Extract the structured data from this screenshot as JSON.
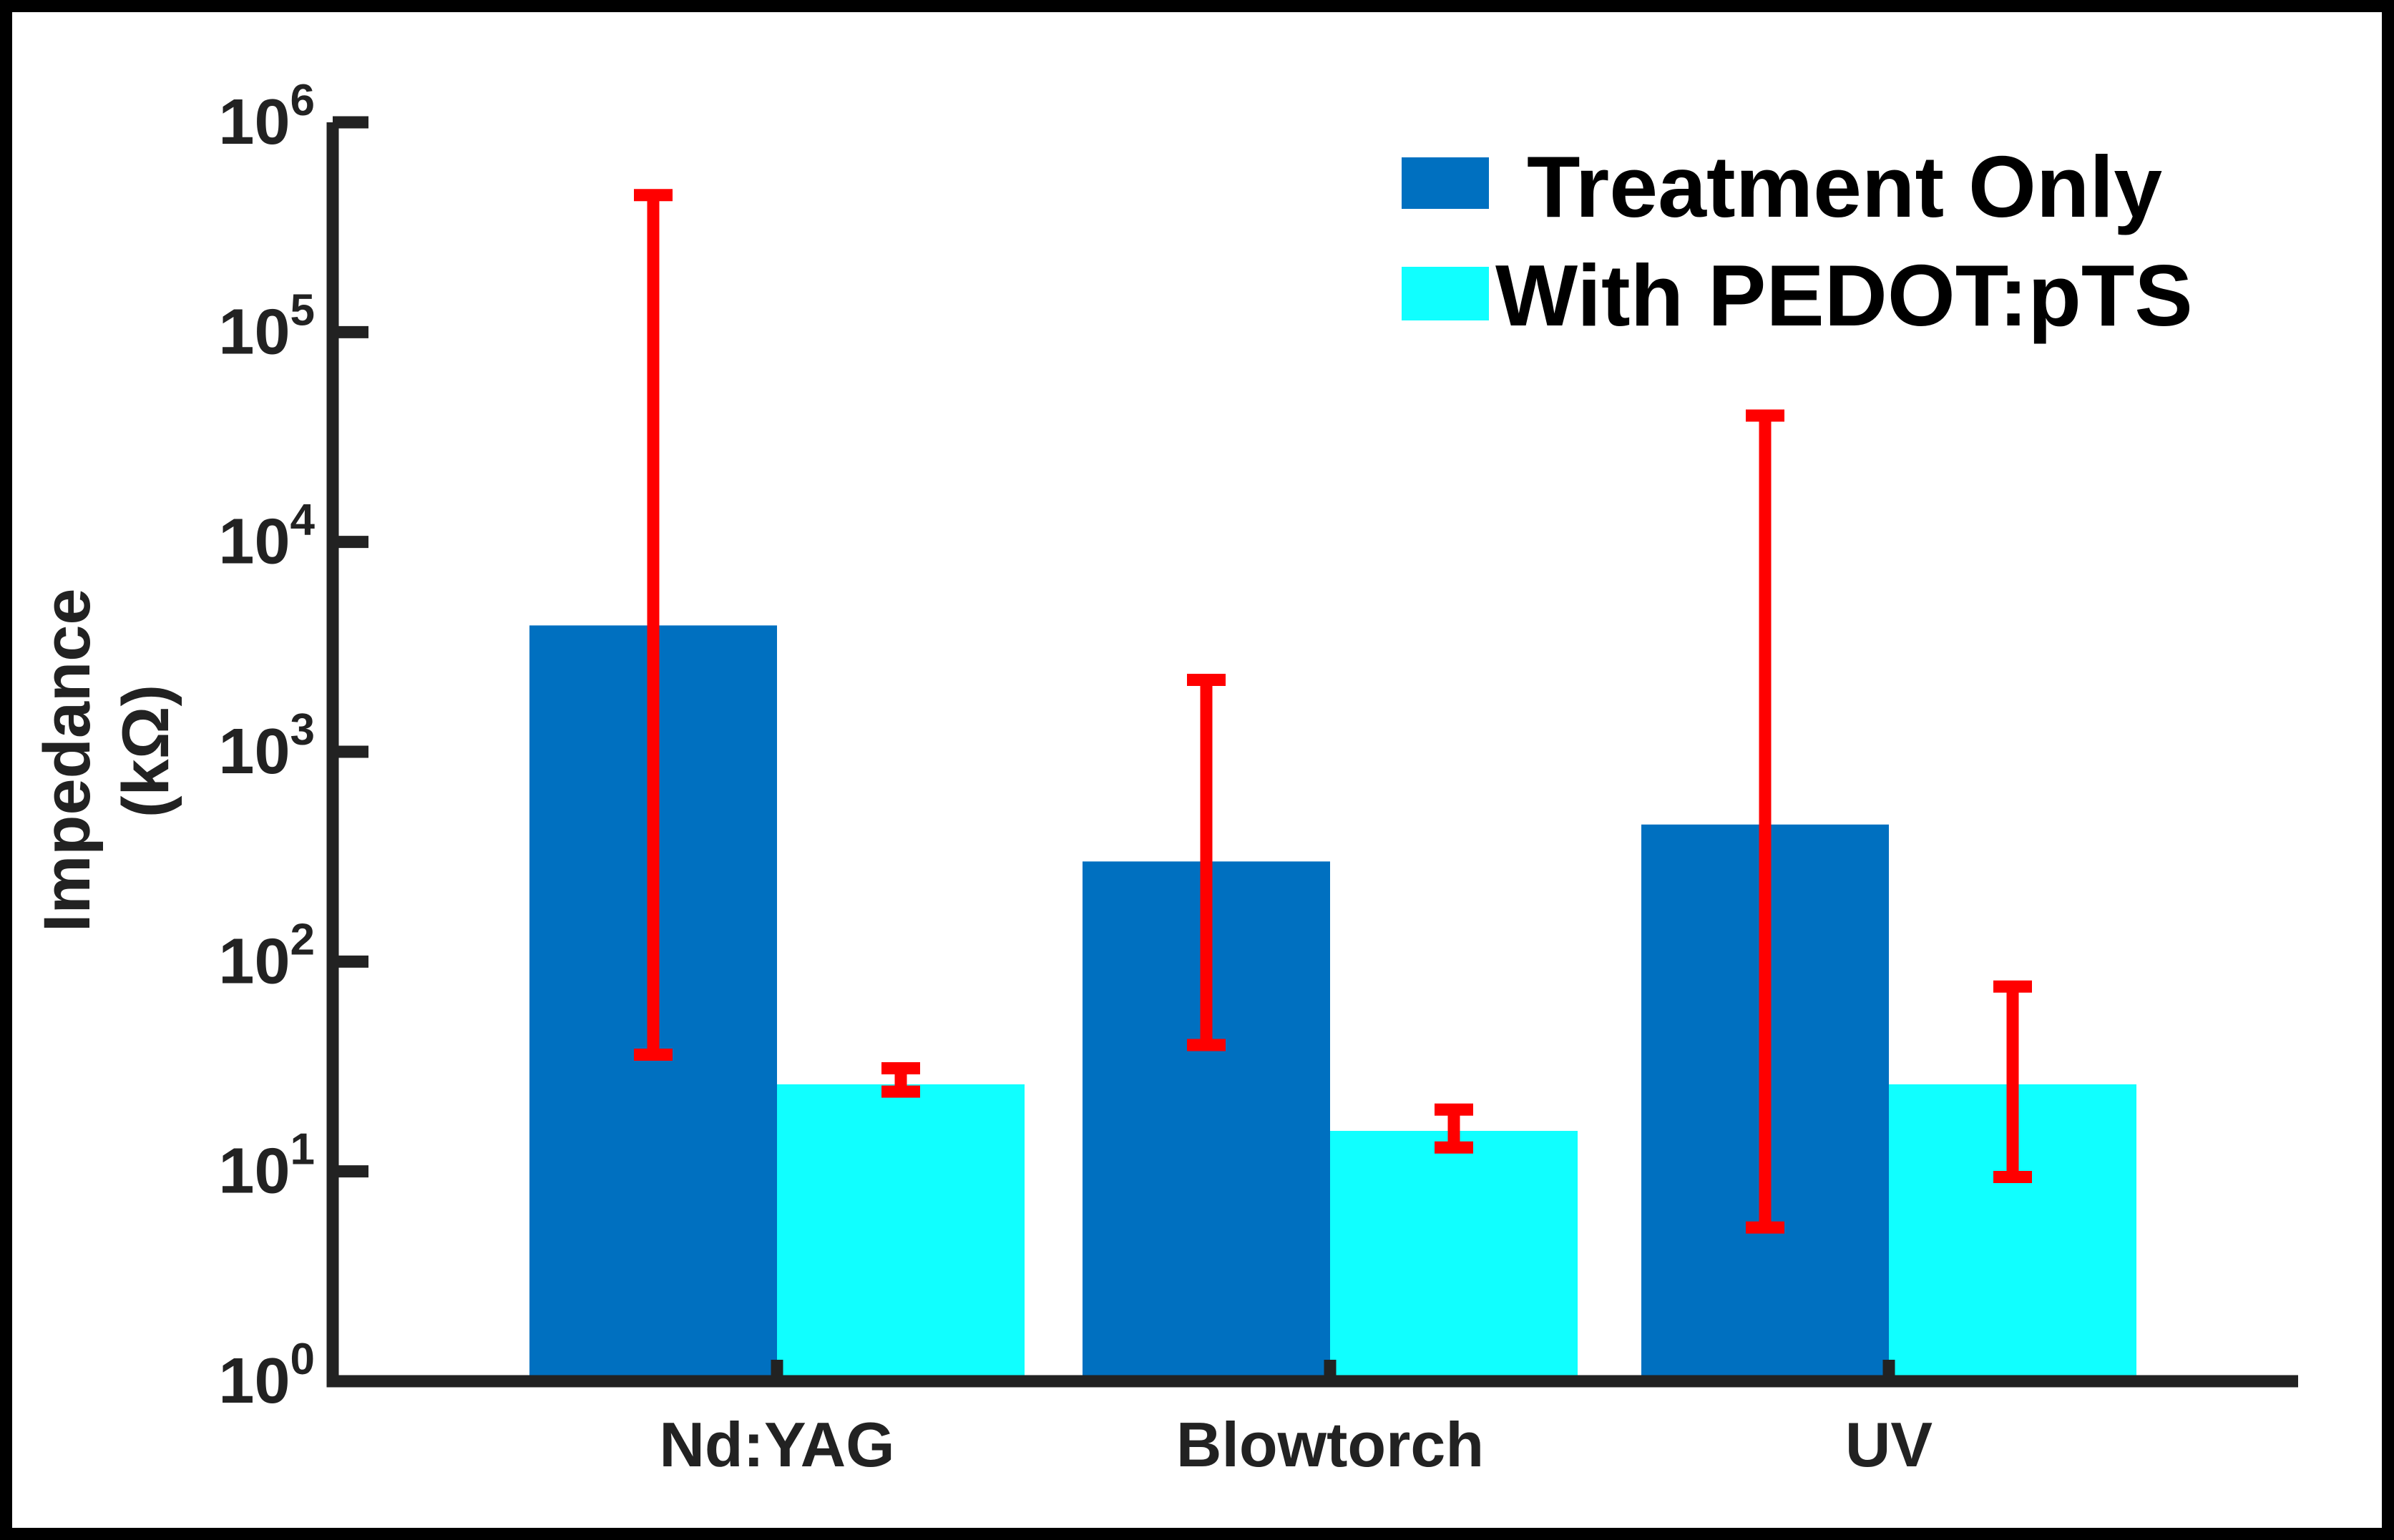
{
  "chart_data": {
    "type": "bar",
    "title": "",
    "xlabel": "",
    "ylabel_lines": [
      "Impedance",
      "(kΩ)"
    ],
    "yscale": "log",
    "ylim": [
      1,
      1000000
    ],
    "yticks": [
      {
        "base": "10",
        "exp": "0"
      },
      {
        "base": "10",
        "exp": "1"
      },
      {
        "base": "10",
        "exp": "2"
      },
      {
        "base": "10",
        "exp": "3"
      },
      {
        "base": "10",
        "exp": "4"
      },
      {
        "base": "10",
        "exp": "5"
      },
      {
        "base": "10",
        "exp": "6"
      }
    ],
    "categories": [
      "Nd:YAG",
      "Blowtorch",
      "UV"
    ],
    "series": [
      {
        "name": "Treatment Only",
        "color": "#0070c0",
        "values": [
          4000,
          300,
          450
        ],
        "err_low": [
          36,
          40,
          5.4
        ],
        "err_high": [
          450000,
          2200,
          40000
        ]
      },
      {
        "name": "With PEDOT:pTS",
        "color": "#10ffff",
        "values": [
          26,
          15.6,
          26
        ],
        "err_low": [
          24,
          13,
          9.4
        ],
        "err_high": [
          31,
          19.7,
          76
        ]
      }
    ],
    "error_bar_color": "#ff0000",
    "legend_position": "top-right",
    "grid": false
  }
}
